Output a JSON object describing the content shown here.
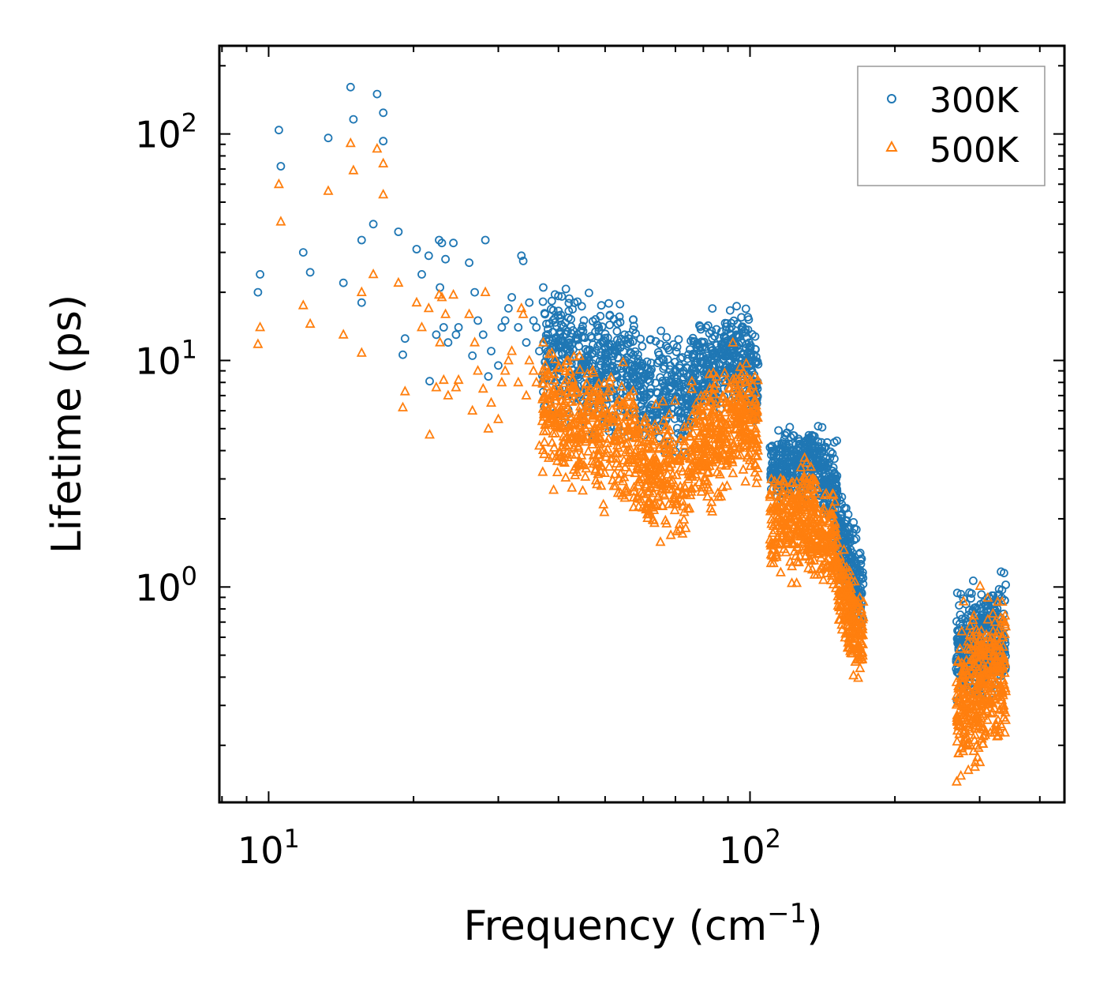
{
  "chart_data": {
    "type": "scatter",
    "title": "",
    "xlabel": "Frequency (cm",
    "xlabel_sup": "−1",
    "xlabel_end": ")",
    "ylabel": "Lifetime (ps)",
    "xscale": "log",
    "yscale": "log",
    "xlim": [
      7.9,
      450
    ],
    "ylim": [
      0.112,
      245
    ],
    "x_ticks": [
      {
        "value": 10,
        "base": "10",
        "exp": "1"
      },
      {
        "value": 100,
        "base": "10",
        "exp": "2"
      }
    ],
    "y_ticks": [
      {
        "value": 1,
        "base": "10",
        "exp": "0"
      },
      {
        "value": 10,
        "base": "10",
        "exp": "1"
      },
      {
        "value": 100,
        "base": "10",
        "exp": "2"
      }
    ],
    "legend_position": "top-right",
    "series": [
      {
        "name": "300K",
        "marker": "circle",
        "color": "#1f77b4",
        "points": [
          [
            9.5,
            20
          ],
          [
            9.6,
            24
          ],
          [
            10.5,
            104
          ],
          [
            10.6,
            72
          ],
          [
            11.8,
            30
          ],
          [
            12.2,
            24.5
          ],
          [
            13.3,
            96
          ],
          [
            14.3,
            22
          ],
          [
            14.8,
            161
          ],
          [
            15.0,
            116
          ],
          [
            15.6,
            34
          ],
          [
            15.6,
            18
          ],
          [
            16.5,
            40
          ],
          [
            16.8,
            150
          ],
          [
            17.3,
            124
          ],
          [
            17.3,
            93
          ],
          [
            18.6,
            37
          ],
          [
            19.0,
            10.6
          ],
          [
            19.2,
            12.5
          ],
          [
            20.3,
            31
          ],
          [
            20.8,
            24
          ],
          [
            21.5,
            29
          ],
          [
            21.6,
            8.1
          ],
          [
            22.3,
            13
          ],
          [
            22.6,
            34
          ],
          [
            22.7,
            21
          ],
          [
            22.9,
            33
          ],
          [
            23.1,
            14
          ],
          [
            23.3,
            28
          ],
          [
            23.6,
            12
          ],
          [
            24.2,
            33
          ],
          [
            24.5,
            13
          ],
          [
            24.8,
            14
          ],
          [
            26.1,
            27
          ],
          [
            26.5,
            10.5
          ],
          [
            26.8,
            20
          ],
          [
            27.2,
            15
          ],
          [
            27.9,
            13
          ],
          [
            28.2,
            34
          ],
          [
            28.6,
            8.5
          ],
          [
            29.0,
            11
          ],
          [
            30.0,
            9.5
          ],
          [
            30.5,
            14
          ],
          [
            31.0,
            15
          ],
          [
            31.5,
            17
          ],
          [
            32.0,
            19
          ],
          [
            33.0,
            14
          ],
          [
            33.5,
            29
          ],
          [
            33.8,
            27.5
          ],
          [
            34.3,
            12
          ],
          [
            34.8,
            18
          ],
          [
            35.5,
            15
          ],
          [
            36.0,
            14
          ],
          [
            36.5,
            11
          ],
          [
            37.2,
            21
          ],
          [
            37.5,
            16
          ]
        ],
        "clusters": [
          {
            "x": [
              37,
              58
            ],
            "y_start": [
              13,
              10
            ],
            "y_end": [
              10,
              7.5
            ],
            "spread": 0.5,
            "n": 420
          },
          {
            "x": [
              58,
              75
            ],
            "y_start": [
              7.5,
              6.5
            ],
            "y_end": [
              6.5,
              7.2
            ],
            "spread": 0.45,
            "n": 240
          },
          {
            "x": [
              75,
              92
            ],
            "y_start": [
              7.2,
              9
            ],
            "y_end": [
              9,
              12.5
            ],
            "spread": 0.4,
            "n": 240
          },
          {
            "x": [
              92,
              104
            ],
            "y_start": [
              12.5,
              10
            ],
            "y_end": [
              10,
              6.5
            ],
            "spread": 0.4,
            "n": 160
          },
          {
            "x": [
              110,
              132
            ],
            "y_start": [
              3.7,
              3.0
            ],
            "y_end": [
              3.0,
              4.3
            ],
            "spread": 0.3,
            "n": 220
          },
          {
            "x": [
              132,
              152
            ],
            "y_start": [
              4.3,
              3.0
            ],
            "y_end": [
              3.0,
              2.4
            ],
            "spread": 0.35,
            "n": 200
          },
          {
            "x": [
              152,
              172
            ],
            "y_start": [
              2.4,
              1.3
            ],
            "y_end": [
              1.3,
              0.68
            ],
            "spread": 0.35,
            "n": 200
          },
          {
            "x": [
              268,
              340
            ],
            "y_start": [
              0.6,
              0.42
            ],
            "y_end": [
              0.42,
              0.95
            ],
            "spread": 0.45,
            "n": 380
          }
        ]
      },
      {
        "name": "500K",
        "marker": "triangle",
        "color": "#ff7f0e",
        "points": [
          [
            9.5,
            11.8
          ],
          [
            9.6,
            14
          ],
          [
            10.5,
            60
          ],
          [
            10.6,
            41
          ],
          [
            11.8,
            17.5
          ],
          [
            12.2,
            14.5
          ],
          [
            13.3,
            56
          ],
          [
            14.3,
            13
          ],
          [
            14.8,
            91
          ],
          [
            15.0,
            69
          ],
          [
            15.6,
            20
          ],
          [
            15.6,
            10.8
          ],
          [
            16.5,
            24
          ],
          [
            16.8,
            86
          ],
          [
            17.3,
            74
          ],
          [
            17.3,
            54
          ],
          [
            18.6,
            22
          ],
          [
            19.0,
            6.2
          ],
          [
            19.2,
            7.3
          ],
          [
            20.3,
            18
          ],
          [
            20.8,
            14
          ],
          [
            21.5,
            17
          ],
          [
            21.6,
            4.7
          ],
          [
            22.3,
            7.6
          ],
          [
            22.6,
            19.5
          ],
          [
            22.7,
            12
          ],
          [
            22.9,
            19
          ],
          [
            23.1,
            8.2
          ],
          [
            23.3,
            16
          ],
          [
            23.6,
            7
          ],
          [
            24.2,
            19.5
          ],
          [
            24.5,
            7.6
          ],
          [
            24.8,
            8.2
          ],
          [
            26.1,
            16
          ],
          [
            26.5,
            6
          ],
          [
            26.8,
            12
          ],
          [
            27.2,
            9
          ],
          [
            27.9,
            7.5
          ],
          [
            28.2,
            20
          ],
          [
            28.6,
            5
          ],
          [
            29.0,
            6.5
          ],
          [
            30.0,
            5.5
          ],
          [
            30.5,
            8
          ],
          [
            31.0,
            9
          ],
          [
            31.5,
            10
          ],
          [
            32.0,
            11
          ],
          [
            33.0,
            8
          ],
          [
            33.5,
            17
          ],
          [
            33.8,
            16
          ],
          [
            34.3,
            7
          ],
          [
            34.8,
            10
          ],
          [
            35.5,
            9
          ],
          [
            36.0,
            8
          ],
          [
            36.5,
            4.2
          ],
          [
            37.2,
            12
          ],
          [
            37.5,
            9
          ]
        ],
        "clusters": [
          {
            "x": [
              37,
              58
            ],
            "y_start": [
              7,
              5
            ],
            "y_end": [
              5,
              3.8
            ],
            "spread": 0.55,
            "n": 420
          },
          {
            "x": [
              58,
              75
            ],
            "y_start": [
              3.8,
              2.8
            ],
            "y_end": [
              2.8,
              3.4
            ],
            "spread": 0.5,
            "n": 240
          },
          {
            "x": [
              75,
              92
            ],
            "y_start": [
              3.4,
              4.2
            ],
            "y_end": [
              4.2,
              6.8
            ],
            "spread": 0.5,
            "n": 240
          },
          {
            "x": [
              92,
              104
            ],
            "y_start": [
              6.8,
              5.5
            ],
            "y_end": [
              5.5,
              4.5
            ],
            "spread": 0.45,
            "n": 160
          },
          {
            "x": [
              110,
              132
            ],
            "y_start": [
              2.2,
              1.6
            ],
            "y_end": [
              1.6,
              2.6
            ],
            "spread": 0.4,
            "n": 220
          },
          {
            "x": [
              132,
              152
            ],
            "y_start": [
              2.6,
              1.5
            ],
            "y_end": [
              1.5,
              1.3
            ],
            "spread": 0.4,
            "n": 200
          },
          {
            "x": [
              152,
              172
            ],
            "y_start": [
              1.3,
              0.8
            ],
            "y_end": [
              0.8,
              0.42
            ],
            "spread": 0.4,
            "n": 200
          },
          {
            "x": [
              268,
              340
            ],
            "y_start": [
              0.35,
              0.25
            ],
            "y_end": [
              0.25,
              0.9
            ],
            "spread": 0.6,
            "n": 380
          }
        ]
      }
    ]
  }
}
